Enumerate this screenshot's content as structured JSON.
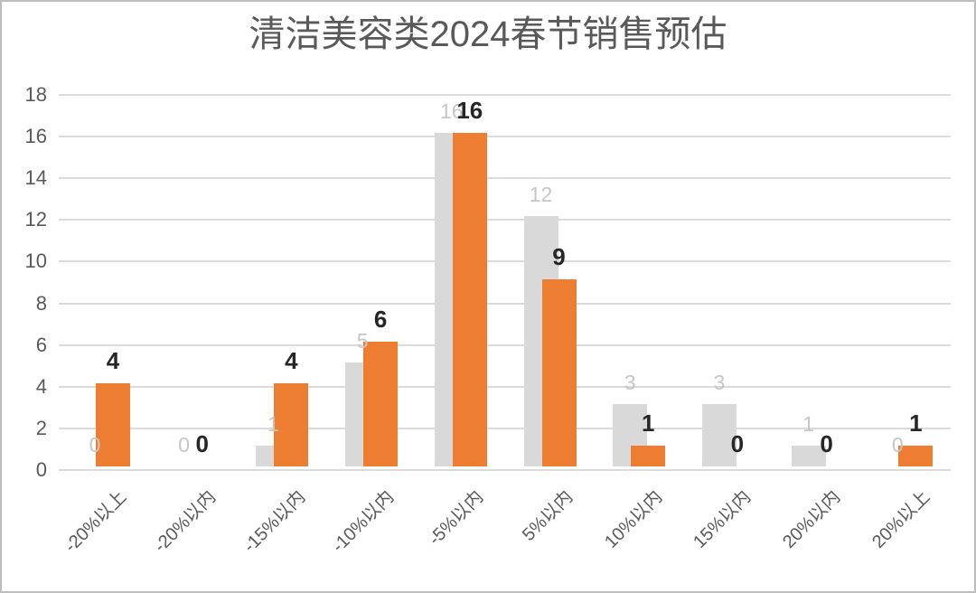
{
  "chart_data": {
    "type": "bar",
    "title": "清洁美容类2024春节销售预估",
    "categories": [
      "-20%以上",
      "-20%以内",
      "-15%以内",
      "-10%以内",
      "-5%以内",
      "5%以内",
      "10%以内",
      "15%以内",
      "20%以内",
      "20%以上"
    ],
    "series": [
      {
        "name": "gray-series",
        "color": "#d9d9d9",
        "label_color": "#c6c6c6",
        "values": [
          0,
          0,
          1,
          5,
          16,
          12,
          3,
          3,
          1,
          0
        ]
      },
      {
        "name": "orange-series",
        "color": "#ed7d31",
        "label_color": "#262626",
        "values": [
          4,
          0,
          4,
          6,
          16,
          9,
          1,
          0,
          0,
          1
        ]
      }
    ],
    "ylim": [
      0,
      18
    ],
    "yticks": [
      0,
      2,
      4,
      6,
      8,
      10,
      12,
      14,
      16,
      18
    ],
    "grid": true,
    "legend": "none",
    "xlabel": "",
    "ylabel": ""
  },
  "colors": {
    "axis_text": "#595959",
    "gridline": "#dbdbdb",
    "title_text": "#595959",
    "background": "#ffffff",
    "border": "#bdbdbd"
  }
}
